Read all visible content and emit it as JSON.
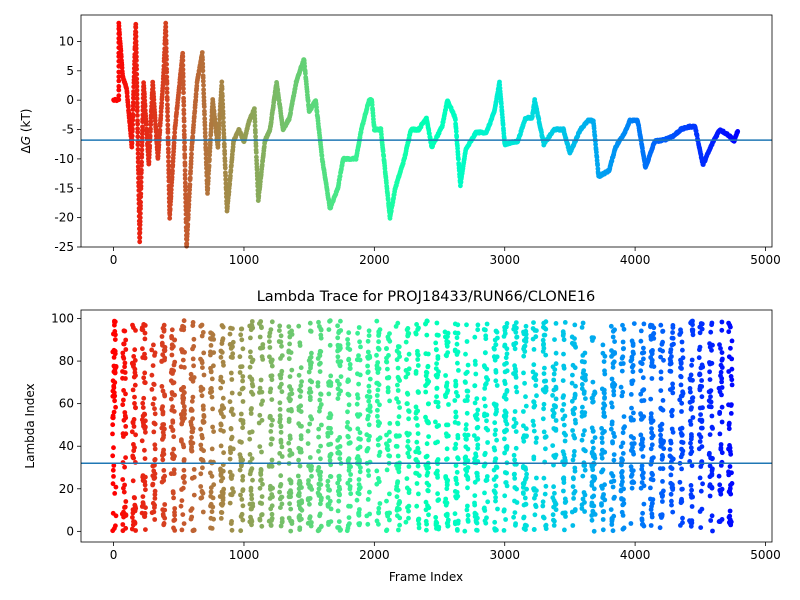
{
  "chart_data": [
    {
      "type": "scatter",
      "title": "",
      "xlabel": "",
      "ylabel": "ΔG (kT)",
      "xlim": [
        -250,
        5050
      ],
      "ylim": [
        -25,
        14.5
      ],
      "xticks": [
        0,
        1000,
        2000,
        3000,
        4000,
        5000
      ],
      "yticks": [
        -25,
        -20,
        -15,
        -10,
        -5,
        0,
        5,
        10
      ],
      "grid": false,
      "legend": "none",
      "hline": -6.8,
      "hline_color": "#1f77b4",
      "colormap": "rainbow",
      "series": [
        {
          "segments": [
            [
              0,
              0
            ],
            [
              40,
              0
            ],
            [
              40,
              13
            ],
            [
              70,
              4
            ],
            [
              100,
              2
            ],
            [
              140,
              -8
            ],
            [
              170,
              13
            ],
            [
              200,
              -24
            ],
            [
              230,
              3
            ],
            [
              270,
              -11
            ],
            [
              300,
              3
            ],
            [
              340,
              -10
            ],
            [
              380,
              3
            ],
            [
              400,
              13
            ],
            [
              430,
              -20
            ],
            [
              470,
              -5
            ],
            [
              530,
              8
            ],
            [
              560,
              -25
            ],
            [
              600,
              -8
            ],
            [
              640,
              3
            ],
            [
              680,
              8
            ],
            [
              720,
              -16
            ],
            [
              760,
              0
            ],
            [
              800,
              -8
            ],
            [
              830,
              3
            ],
            [
              870,
              -19
            ],
            [
              920,
              -7
            ],
            [
              960,
              -5
            ],
            [
              1000,
              -7
            ],
            [
              1040,
              -3.5
            ],
            [
              1080,
              -1.5
            ],
            [
              1110,
              -17
            ],
            [
              1160,
              -7
            ],
            [
              1200,
              -5
            ],
            [
              1250,
              3
            ],
            [
              1300,
              -5
            ],
            [
              1350,
              -3
            ],
            [
              1400,
              3
            ],
            [
              1460,
              7
            ],
            [
              1500,
              -2
            ],
            [
              1550,
              0
            ],
            [
              1600,
              -10
            ],
            [
              1660,
              -18.5
            ],
            [
              1720,
              -15
            ],
            [
              1760,
              -10
            ],
            [
              1860,
              -10
            ],
            [
              1900,
              -5
            ],
            [
              1960,
              0
            ],
            [
              1980,
              0
            ],
            [
              2000,
              -5
            ],
            [
              2050,
              -5
            ],
            [
              2120,
              -20
            ],
            [
              2160,
              -15
            ],
            [
              2230,
              -10
            ],
            [
              2280,
              -5
            ],
            [
              2340,
              -5
            ],
            [
              2400,
              -3
            ],
            [
              2440,
              -8
            ],
            [
              2520,
              -4.5
            ],
            [
              2560,
              0
            ],
            [
              2620,
              -3
            ],
            [
              2660,
              -14.5
            ],
            [
              2700,
              -8.5
            ],
            [
              2780,
              -5.5
            ],
            [
              2860,
              -5.5
            ],
            [
              2920,
              -2
            ],
            [
              2960,
              3
            ],
            [
              3000,
              -7.5
            ],
            [
              3100,
              -7
            ],
            [
              3160,
              -3
            ],
            [
              3210,
              -3
            ],
            [
              3230,
              0
            ],
            [
              3300,
              -7.5
            ],
            [
              3380,
              -5
            ],
            [
              3450,
              -5
            ],
            [
              3500,
              -9
            ],
            [
              3580,
              -5
            ],
            [
              3640,
              -3.5
            ],
            [
              3680,
              -3.5
            ],
            [
              3720,
              -13
            ],
            [
              3800,
              -12
            ],
            [
              3850,
              -8
            ],
            [
              3920,
              -5.5
            ],
            [
              3960,
              -3.5
            ],
            [
              4020,
              -3.5
            ],
            [
              4080,
              -11.5
            ],
            [
              4150,
              -7
            ],
            [
              4220,
              -6.8
            ],
            [
              4300,
              -6
            ],
            [
              4350,
              -5
            ],
            [
              4420,
              -4.5
            ],
            [
              4460,
              -4.5
            ],
            [
              4520,
              -11
            ],
            [
              4600,
              -7
            ],
            [
              4650,
              -5
            ],
            [
              4720,
              -6
            ],
            [
              4760,
              -7
            ],
            [
              4790,
              -5
            ]
          ]
        }
      ]
    },
    {
      "type": "scatter",
      "title": "Lambda Trace for PROJ18433/RUN66/CLONE16",
      "xlabel": "Frame Index",
      "ylabel": "Lambda Index",
      "xlim": [
        -250,
        5050
      ],
      "ylim": [
        -5,
        104
      ],
      "xticks": [
        0,
        1000,
        2000,
        3000,
        4000,
        5000
      ],
      "yticks": [
        0,
        20,
        40,
        60,
        80,
        100
      ],
      "grid": false,
      "legend": "none",
      "hline": 32,
      "hline_color": "#1f77b4",
      "colormap": "rainbow",
      "x_range": [
        0,
        4790
      ],
      "y_range": [
        0,
        99
      ],
      "band_spacing": 75,
      "band_width": 28
    }
  ],
  "labels": {
    "top_ylabel_prefix": "Δ",
    "top_ylabel_var": "G",
    "top_ylabel_unit": " (kT)"
  }
}
